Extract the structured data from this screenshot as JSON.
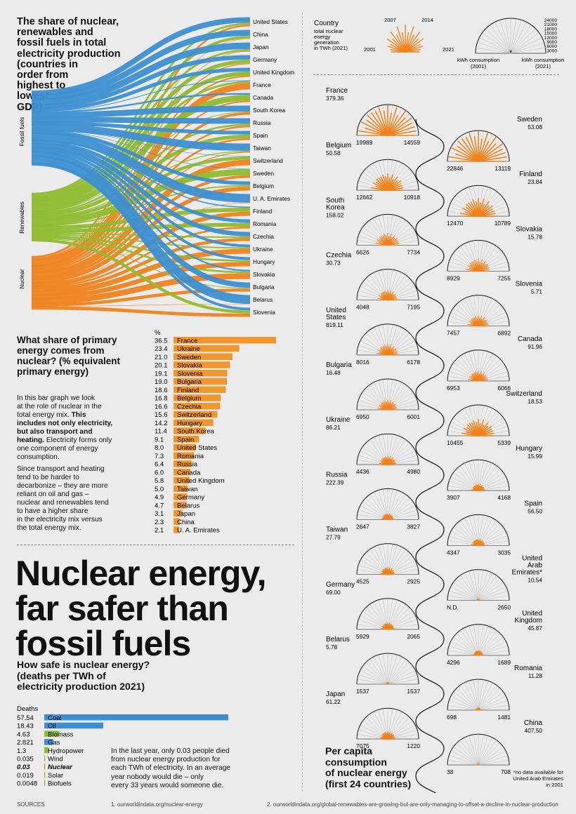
{
  "sankey": {
    "title": "The share of nuclear, renewables and fossil fuels in total electricity production (countries in order from highest to lowest GDP)",
    "title_lines": [
      "The share of nuclear,",
      "renewables and",
      "fossil fuels in total",
      "electricity production",
      "(countries in",
      "order from",
      "highest to",
      "lowest",
      "GDP)"
    ],
    "sources": [
      "Fossil fuels",
      "Renewables",
      "Nuclear"
    ],
    "countries": [
      "United States",
      "China",
      "Japan",
      "Germany",
      "United Kingdom",
      "France",
      "Canada",
      "South Korea",
      "Russia",
      "Spain",
      "Taiwan",
      "Switzerland",
      "Sweden",
      "Belgium",
      "U. A. Emirates",
      "Finland",
      "Romania",
      "Czechia",
      "Ukraine",
      "Hungary",
      "Slovakia",
      "Bulgaria",
      "Belarus",
      "Slovenia"
    ],
    "colors": {
      "fossil": "#3d8fd1",
      "renewables": "#8fbc2f",
      "nuclear": "#f0821e"
    }
  },
  "chart_data": [
    {
      "type": "bar",
      "title": "What share of primary energy comes from nuclear? (% equivalent primary energy)",
      "title_lines": [
        "What share of primary",
        "energy comes from",
        "nuclear? (% equivalent",
        "primary energy)"
      ],
      "unit": "%",
      "categories": [
        "France",
        "Ukraine",
        "Sweden",
        "Slovakia",
        "Slovenia",
        "Bulgaria",
        "Finland",
        "Belgium",
        "Czechia",
        "Switzerland",
        "Hungary",
        "South Korea",
        "Spain",
        "United States",
        "Romania",
        "Russia",
        "Canada",
        "United Kingdom",
        "Taiwan",
        "Germany",
        "Belarus",
        "Japan",
        "China",
        "U. A. Emirates"
      ],
      "values": [
        36.5,
        23.4,
        21.0,
        20.1,
        19.1,
        19.0,
        18.6,
        16.8,
        16.6,
        15.6,
        14.2,
        11.4,
        9.1,
        8.0,
        7.3,
        6.4,
        6.0,
        5.8,
        5.0,
        4.9,
        4.7,
        3.1,
        2.3,
        2.1
      ],
      "value_labels": [
        "36.5",
        "23.4",
        "21.0",
        "20.1",
        "19.1",
        "19.0",
        "18.6",
        "16.8",
        "16.6",
        "15.6",
        "14.2",
        "11.4",
        "9.1",
        "8.0",
        "7.3",
        "6.4",
        "6.0",
        "5.8",
        "5.0",
        "4.9",
        "4.7",
        "3.1",
        "2.3",
        "2.1"
      ],
      "color": "#f0962e"
    },
    {
      "type": "bar",
      "title": "How safe is nuclear energy? (deaths per TWh of electricity production 2021)",
      "title_lines": [
        "How safe is nuclear energy?",
        "(deaths per TWh of",
        "electricity production 2021)"
      ],
      "ylabel": "Deaths",
      "categories": [
        "Coal",
        "Oil",
        "Biomass",
        "Gas",
        "Hydropower",
        "Wind",
        "Nuclear",
        "Solar",
        "Biofuels"
      ],
      "values": [
        57.54,
        18.43,
        4.63,
        2.821,
        1.3,
        0.035,
        0.03,
        0.019,
        0.0048
      ],
      "value_labels": [
        "57.54",
        "18.43",
        "4.63",
        "2.821",
        "1.3",
        "0.035",
        "0.03",
        "0.019",
        "0.0048"
      ],
      "colors": [
        "#3d8fd1",
        "#3d8fd1",
        "#8fbc2f",
        "#3d8fd1",
        "#8fbc2f",
        "#8fbc2f",
        "#f0821e",
        "#8fbc2f",
        "#8fbc2f"
      ]
    },
    {
      "type": "radial",
      "title": "Per capita consumption of nuclear energy (first 24 countries)",
      "countries": [
        {
          "name": "France",
          "twh": "379.36",
          "kwh2001": "19989",
          "kwh2021": "14559",
          "side": "left",
          "size": 1.0
        },
        {
          "name": "Belgium",
          "twh": "50.58",
          "kwh2001": "12662",
          "kwh2021": "10918",
          "side": "left",
          "size": 0.55
        },
        {
          "name": "South Korea",
          "twh": "158.02",
          "kwh2001": "6626",
          "kwh2021": "7734",
          "side": "left",
          "size": 0.4
        },
        {
          "name": "Czechia",
          "twh": "30.73",
          "kwh2001": "4048",
          "kwh2021": "7195",
          "side": "left",
          "size": 0.33
        },
        {
          "name": "United States",
          "twh": "819.11",
          "kwh2001": "8016",
          "kwh2021": "6178",
          "side": "left",
          "size": 0.36
        },
        {
          "name": "Bulgaria",
          "twh": "16.48",
          "kwh2001": "6950",
          "kwh2021": "6001",
          "side": "left",
          "size": 0.33
        },
        {
          "name": "Ukraine",
          "twh": "86.21",
          "kwh2001": "4436",
          "kwh2021": "4980",
          "side": "left",
          "size": 0.29
        },
        {
          "name": "Russia",
          "twh": "222.39",
          "kwh2001": "2647",
          "kwh2021": "3827",
          "side": "left",
          "size": 0.2
        },
        {
          "name": "Taiwan",
          "twh": "27.79",
          "kwh2001": "4525",
          "kwh2021": "2925",
          "side": "left",
          "size": 0.24
        },
        {
          "name": "Germany",
          "twh": "69.00",
          "kwh2001": "5929",
          "kwh2021": "2065",
          "side": "left",
          "size": 0.22
        },
        {
          "name": "Belarus",
          "twh": "5.78",
          "kwh2001": "1537",
          "kwh2021": "1537",
          "side": "left",
          "size": 0.06
        },
        {
          "name": "Japan",
          "twh": "61.22",
          "kwh2001": "7075",
          "kwh2021": "1220",
          "side": "left",
          "size": 0.26
        },
        {
          "name": "Sweden",
          "twh": "53.08",
          "kwh2001": "22846",
          "kwh2021": "13119",
          "side": "right",
          "size": 1.0
        },
        {
          "name": "Finland",
          "twh": "23.84",
          "kwh2001": "12470",
          "kwh2021": "10789",
          "side": "right",
          "size": 0.6
        },
        {
          "name": "Slovakia",
          "twh": "15.78",
          "kwh2001": "8929",
          "kwh2021": "7255",
          "side": "right",
          "size": 0.4
        },
        {
          "name": "Slovenia",
          "twh": "5.71",
          "kwh2001": "7457",
          "kwh2021": "6892",
          "side": "right",
          "size": 0.35
        },
        {
          "name": "Canada",
          "twh": "91.96",
          "kwh2001": "6953",
          "kwh2021": "6066",
          "side": "right",
          "size": 0.33
        },
        {
          "name": "Switzerland",
          "twh": "18.53",
          "kwh2001": "10455",
          "kwh2021": "5339",
          "side": "right",
          "size": 0.55
        },
        {
          "name": "Hungary",
          "twh": "15.99",
          "kwh2001": "3907",
          "kwh2021": "4168",
          "side": "right",
          "size": 0.22
        },
        {
          "name": "Spain",
          "twh": "56.50",
          "kwh2001": "4347",
          "kwh2021": "3035",
          "side": "right",
          "size": 0.22
        },
        {
          "name": "United Arab Emirates*",
          "twh": "10.54",
          "kwh2001": "N.D.",
          "kwh2021": "2650",
          "side": "right",
          "size": 0.05
        },
        {
          "name": "United Kingdom",
          "twh": "45.87",
          "kwh2001": "4296",
          "kwh2021": "1689",
          "side": "right",
          "size": 0.16
        },
        {
          "name": "Romania",
          "twh": "11.28",
          "kwh2001": "698",
          "kwh2021": "1481",
          "side": "right",
          "size": 0.08
        },
        {
          "name": "China",
          "twh": "407.50",
          "kwh2001": "38",
          "kwh2021": "708",
          "side": "right",
          "size": 0.04
        }
      ]
    }
  ],
  "text": {
    "bar_intro": [
      "In this bar graph we look",
      "at the role of nuclear in the",
      "total energy mix."
    ],
    "bar_intro_bold": [
      "This",
      "includes not only electricity,",
      "but also transport and",
      "heating."
    ],
    "bar_intro_rest": [
      "Electricity forms only",
      "one component of energy",
      "consumption."
    ],
    "para2": [
      "Since transport and heating",
      "tend to be harder to",
      "decarbonize – they are more",
      "reliant on oil and gas –",
      "nuclear and renewables tend",
      "to have a higher share",
      "in the electricity mix versus",
      "the total energy mix."
    ],
    "headline": [
      "Nuclear energy,",
      "far safer than",
      "fossil fuels"
    ],
    "safety_note": [
      "In the last year, only 0.03 people died",
      "from nuclear energy production for",
      "each TWh of electricity. In an average",
      "year nobody would die – only",
      "every 33 years would someone die."
    ],
    "legend_country": "Country",
    "legend_desc": [
      "total nuclear",
      "energy",
      "generation",
      "in TWh (2021)"
    ],
    "legend_years": {
      "y2001": "2001",
      "y2007": "2007",
      "y2014": "2014",
      "y2021": "2021"
    },
    "legend_scale": [
      "24000",
      "21000",
      "18000",
      "15000",
      "12000",
      "9000",
      "6000",
      "3000"
    ],
    "legend_kwh2001": [
      "kWh consumption",
      "(2001)"
    ],
    "legend_kwh2021": [
      "kWh consumption",
      "(2021)"
    ],
    "per_capita_title": [
      "Per capita",
      "consumption",
      "of nuclear energy",
      "(first 24 countries)"
    ],
    "footnote": [
      "*no data available for",
      "United Arab Emirates",
      "in 2001"
    ],
    "sources_label": "SOURCES",
    "source1": "1. ourworldindata.org/nuclear-energy",
    "source2": "2. ourworldindata.org/global-renewables-are-growing-but-are-only-managing-to-offset-a-decline-in-nuclear-production"
  }
}
